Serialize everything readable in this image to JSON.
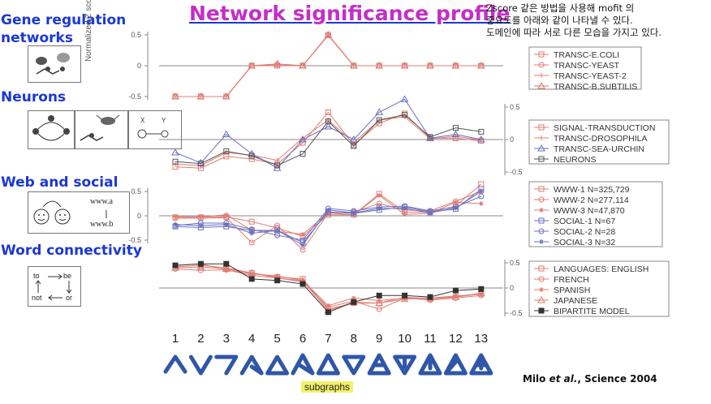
{
  "page": {
    "title": "Network significance profile",
    "note_lines": [
      "Zscore 같은 방법을 사용해 mofit 의",
      "중요도를 아래와 같이 나타낼 수 있다.",
      "도메인에 따라 서로 다른 모습을 가지고 있다."
    ],
    "citation": {
      "author": "Milo ",
      "etal": "et al.",
      "rest": ", Science 2004"
    },
    "subgraphs_label": "subgraphs",
    "ylabel": "Normalized Z score",
    "sections": [
      "Gene regulation\nnetworks",
      "Neurons",
      "Web and social",
      "Word connectivity"
    ],
    "icon_labels": {
      "web_a": "www.a",
      "web_b": "www.b",
      "word_to": "to",
      "word_be": "be",
      "word_not": "not",
      "word_or": "or"
    }
  },
  "chart_data": [
    {
      "type": "line",
      "panel": "gene",
      "x": [
        1,
        2,
        3,
        4,
        5,
        6,
        7,
        8,
        9,
        10,
        11,
        12,
        13
      ],
      "ylim": [
        -0.6,
        0.6
      ],
      "yticks": [
        -0.5,
        0,
        0.5
      ],
      "series": [
        {
          "name": "TRANSC-E.COLI",
          "marker": "square",
          "color": "#e07c72",
          "values": [
            -0.5,
            -0.5,
            -0.5,
            0,
            0,
            0,
            0.5,
            0,
            0,
            0,
            0,
            0,
            0
          ]
        },
        {
          "name": "TRANSC-YEAST",
          "marker": "circle",
          "color": "#e07c72",
          "values": [
            -0.5,
            -0.5,
            -0.5,
            0,
            0.02,
            0,
            0.49,
            0,
            0,
            0,
            0,
            0,
            0
          ]
        },
        {
          "name": "TRANSC-YEAST-2",
          "marker": "plus",
          "color": "#e07c72",
          "values": [
            -0.5,
            -0.5,
            -0.5,
            0,
            0,
            0,
            0.5,
            0,
            0,
            0,
            0,
            0,
            0
          ]
        },
        {
          "name": "TRANSC-B.SUBTILIS",
          "marker": "triangle",
          "color": "#e07c72",
          "values": [
            -0.5,
            -0.5,
            -0.5,
            0,
            0.03,
            0,
            0.5,
            0,
            0,
            0,
            0,
            0,
            0
          ]
        }
      ]
    },
    {
      "type": "line",
      "panel": "neurons",
      "x": [
        1,
        2,
        3,
        4,
        5,
        6,
        7,
        8,
        9,
        10,
        11,
        12,
        13
      ],
      "ylim": [
        -0.6,
        0.6
      ],
      "yticks": [
        -0.5,
        0,
        0.5
      ],
      "series": [
        {
          "name": "SIGNAL-TRANSDUCTION",
          "marker": "square",
          "color": "#e07c72",
          "values": [
            -0.42,
            -0.44,
            -0.26,
            -0.3,
            -0.38,
            -0.05,
            0.42,
            -0.08,
            0.25,
            0.4,
            0.02,
            0.02,
            -0.02
          ]
        },
        {
          "name": "TRANSC-DROSOPHILA",
          "marker": "plus",
          "color": "#e07c72",
          "values": [
            -0.38,
            -0.4,
            -0.2,
            -0.24,
            -0.32,
            0.02,
            0.3,
            -0.05,
            0.3,
            0.35,
            0.01,
            0.05,
            -0.01
          ]
        },
        {
          "name": "TRANSC-SEA-URCHIN",
          "marker": "triangle",
          "color": "#6a6fc0",
          "values": [
            -0.2,
            -0.36,
            0.08,
            -0.22,
            -0.44,
            0.0,
            0.2,
            0.0,
            0.42,
            0.62,
            0.02,
            0.08,
            0.0
          ]
        },
        {
          "name": "NEURONS",
          "marker": "square",
          "color": "#555555",
          "values": [
            -0.34,
            -0.37,
            -0.18,
            -0.25,
            -0.4,
            -0.22,
            0.28,
            -0.1,
            0.3,
            0.38,
            0.04,
            0.18,
            0.12
          ]
        }
      ]
    },
    {
      "type": "line",
      "panel": "web",
      "x": [
        1,
        2,
        3,
        4,
        5,
        6,
        7,
        8,
        9,
        10,
        11,
        12,
        13
      ],
      "ylim": [
        -0.75,
        0.65
      ],
      "yticks": [
        -0.5,
        0,
        0.5
      ],
      "series": [
        {
          "name": "WWW-1 N=325,729",
          "marker": "square",
          "color": "#e07c72",
          "values": [
            -0.03,
            -0.03,
            -0.02,
            -0.12,
            -0.25,
            -0.42,
            0.02,
            0.02,
            0.45,
            0.08,
            0.07,
            0.2,
            0.65
          ]
        },
        {
          "name": "WWW-2 N=277,114",
          "marker": "circle",
          "color": "#e07c72",
          "values": [
            -0.05,
            -0.05,
            -0.04,
            -0.55,
            -0.2,
            -0.7,
            0.05,
            0.08,
            0.25,
            0.12,
            0.1,
            0.3,
            0.5
          ]
        },
        {
          "name": "WWW-3 N=47,870",
          "marker": "star",
          "color": "#e07c72",
          "values": [
            -0.02,
            -0.02,
            0.02,
            -0.3,
            -0.32,
            -0.38,
            0.06,
            0.02,
            0.42,
            0.03,
            0.05,
            0.28,
            0.25
          ]
        },
        {
          "name": "SOCIAL-1 N=67",
          "marker": "square",
          "color": "#6a6fc0",
          "values": [
            -0.22,
            -0.24,
            -0.22,
            -0.3,
            -0.3,
            -0.55,
            0.08,
            0.05,
            0.12,
            0.18,
            0.08,
            0.14,
            0.55
          ]
        },
        {
          "name": "SOCIAL-2 N=28",
          "marker": "circle",
          "color": "#6a6fc0",
          "values": [
            -0.2,
            -0.15,
            -0.15,
            -0.28,
            -0.4,
            -0.5,
            0.15,
            0.1,
            0.18,
            0.2,
            0.1,
            0.18,
            0.4
          ]
        },
        {
          "name": "SOCIAL-3 N=32",
          "marker": "star",
          "color": "#6a6fc0",
          "values": [
            -0.18,
            -0.2,
            -0.18,
            -0.36,
            -0.3,
            -0.6,
            0.12,
            0.06,
            0.15,
            0.15,
            0.06,
            0.16,
            0.5
          ]
        }
      ]
    },
    {
      "type": "line",
      "panel": "word",
      "x": [
        1,
        2,
        3,
        4,
        5,
        6,
        7,
        8,
        9,
        10,
        11,
        12,
        13
      ],
      "ylim": [
        -0.6,
        0.6
      ],
      "yticks": [
        -0.5,
        0,
        0.5
      ],
      "series": [
        {
          "name": "LANGUAGES: ENGLISH",
          "marker": "square",
          "color": "#e07c72",
          "values": [
            0.42,
            0.45,
            0.4,
            0.3,
            0.22,
            0.18,
            -0.42,
            -0.3,
            -0.3,
            -0.18,
            -0.22,
            -0.18,
            -0.12
          ]
        },
        {
          "name": "FRENCH",
          "marker": "circle",
          "color": "#e07c72",
          "values": [
            0.38,
            0.35,
            0.36,
            0.25,
            0.2,
            0.12,
            -0.38,
            -0.26,
            -0.42,
            -0.2,
            -0.24,
            -0.2,
            -0.15
          ]
        },
        {
          "name": "SPANISH",
          "marker": "star",
          "color": "#e07c72",
          "values": [
            0.45,
            0.48,
            0.36,
            0.28,
            0.24,
            0.15,
            -0.35,
            -0.2,
            -0.25,
            -0.2,
            -0.2,
            -0.16,
            -0.12
          ]
        },
        {
          "name": "JAPANESE",
          "marker": "triangle",
          "color": "#e07c72",
          "values": [
            0.4,
            0.42,
            0.38,
            0.3,
            0.2,
            0.14,
            -0.45,
            -0.28,
            -0.3,
            -0.22,
            -0.2,
            -0.18,
            -0.1
          ]
        },
        {
          "name": "BIPARTITE MODEL",
          "marker": "filledsquare",
          "color": "#333333",
          "values": [
            0.45,
            0.48,
            0.48,
            0.18,
            0.15,
            0.08,
            -0.48,
            -0.28,
            -0.15,
            -0.15,
            -0.18,
            -0.05,
            -0.02
          ]
        }
      ]
    }
  ],
  "x_tick_labels": [
    "1",
    "2",
    "3",
    "4",
    "5",
    "6",
    "7",
    "8",
    "9",
    "10",
    "11",
    "12",
    "13"
  ]
}
